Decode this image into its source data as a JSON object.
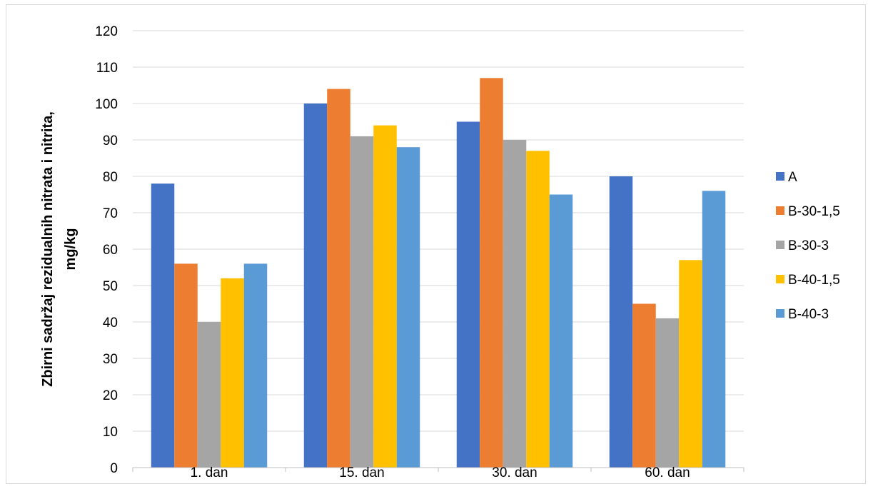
{
  "chart_data": {
    "type": "bar",
    "title": "",
    "xlabel": "",
    "ylabel_line1": "Zbirni sadržaj rezidualnih nitrata i nitrita,",
    "ylabel_line2": "mg/kg",
    "ylim": [
      0,
      120
    ],
    "yticks": [
      "0",
      "10",
      "20",
      "30",
      "40",
      "50",
      "60",
      "70",
      "80",
      "90",
      "100",
      "110",
      "120"
    ],
    "categories": [
      "1. dan",
      "15. dan",
      "30. dan",
      "60. dan"
    ],
    "grid": true,
    "legend_position": "right",
    "series": [
      {
        "name": "A",
        "color": "#4472C4",
        "values": [
          78,
          100,
          95,
          80
        ]
      },
      {
        "name": "B-30-1,5",
        "color": "#ED7D31",
        "values": [
          56,
          104,
          107,
          45
        ]
      },
      {
        "name": "B-30-3",
        "color": "#A5A5A5",
        "values": [
          40,
          91,
          90,
          41
        ]
      },
      {
        "name": "B-40-1,5",
        "color": "#FFC000",
        "values": [
          52,
          94,
          87,
          57
        ]
      },
      {
        "name": "B-40-3",
        "color": "#5B9BD5",
        "values": [
          56,
          88,
          75,
          76
        ]
      }
    ]
  }
}
